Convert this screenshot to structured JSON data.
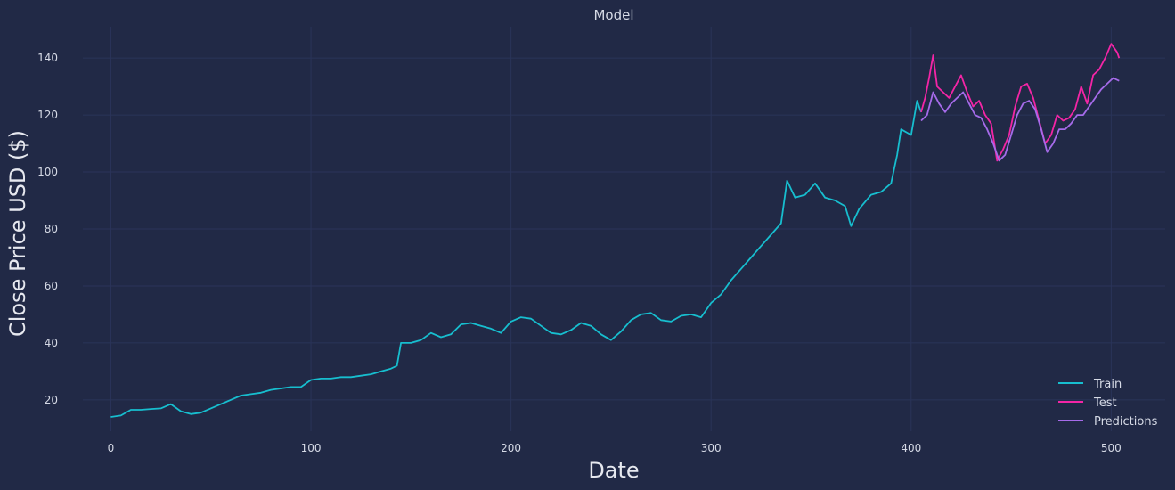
{
  "chart_data": {
    "type": "line",
    "title": "Model",
    "xlabel": "Date",
    "ylabel": "Close Price USD ($)",
    "xlim": [
      -14,
      527
    ],
    "ylim": [
      9,
      151
    ],
    "xticks": [
      0,
      100,
      200,
      300,
      400,
      500
    ],
    "yticks": [
      20,
      40,
      60,
      80,
      100,
      120,
      140
    ],
    "grid": true,
    "legend_position": "bottom-right",
    "colors": {
      "background": "#212946",
      "grid": "#2A3459",
      "text": "#d6dae6",
      "train": "#17BECF",
      "test": "#F425A6",
      "predictions": "#A66BEA"
    },
    "series": [
      {
        "name": "Train",
        "color": "#17BECF",
        "points": [
          [
            0,
            14
          ],
          [
            5,
            14.5
          ],
          [
            10,
            16.5
          ],
          [
            15,
            16.5
          ],
          [
            20,
            16.8
          ],
          [
            25,
            17
          ],
          [
            30,
            18.5
          ],
          [
            35,
            16
          ],
          [
            40,
            15
          ],
          [
            45,
            15.5
          ],
          [
            50,
            17
          ],
          [
            55,
            18.5
          ],
          [
            60,
            20
          ],
          [
            65,
            21.5
          ],
          [
            70,
            22
          ],
          [
            75,
            22.5
          ],
          [
            80,
            23.5
          ],
          [
            85,
            24
          ],
          [
            90,
            24.5
          ],
          [
            95,
            24.5
          ],
          [
            100,
            27
          ],
          [
            105,
            27.5
          ],
          [
            110,
            27.5
          ],
          [
            115,
            28
          ],
          [
            120,
            28
          ],
          [
            125,
            28.5
          ],
          [
            130,
            29
          ],
          [
            135,
            30
          ],
          [
            140,
            31
          ],
          [
            143,
            32
          ],
          [
            145,
            40
          ],
          [
            150,
            40
          ],
          [
            155,
            41
          ],
          [
            160,
            43.5
          ],
          [
            165,
            42
          ],
          [
            170,
            43
          ],
          [
            175,
            46.5
          ],
          [
            180,
            47
          ],
          [
            185,
            46
          ],
          [
            190,
            45
          ],
          [
            195,
            43.5
          ],
          [
            200,
            47.5
          ],
          [
            205,
            49
          ],
          [
            210,
            48.5
          ],
          [
            215,
            46
          ],
          [
            220,
            43.5
          ],
          [
            225,
            43
          ],
          [
            230,
            44.5
          ],
          [
            235,
            47
          ],
          [
            240,
            46
          ],
          [
            245,
            43
          ],
          [
            250,
            41
          ],
          [
            255,
            44
          ],
          [
            260,
            48
          ],
          [
            265,
            50
          ],
          [
            270,
            50.5
          ],
          [
            275,
            48
          ],
          [
            280,
            47.5
          ],
          [
            285,
            49.5
          ],
          [
            290,
            50
          ],
          [
            295,
            49
          ],
          [
            300,
            54
          ],
          [
            305,
            57
          ],
          [
            310,
            62
          ],
          [
            315,
            66
          ],
          [
            320,
            70
          ],
          [
            325,
            74
          ],
          [
            330,
            78
          ],
          [
            335,
            82
          ],
          [
            338,
            97
          ],
          [
            342,
            91
          ],
          [
            347,
            92
          ],
          [
            352,
            96
          ],
          [
            357,
            91
          ],
          [
            362,
            90
          ],
          [
            367,
            88
          ],
          [
            370,
            81
          ],
          [
            374,
            87
          ],
          [
            380,
            92
          ],
          [
            385,
            93
          ],
          [
            390,
            96
          ],
          [
            393,
            106
          ],
          [
            395,
            115
          ],
          [
            400,
            113
          ],
          [
            403,
            125
          ],
          [
            405,
            121
          ]
        ]
      },
      {
        "name": "Test",
        "color": "#F425A6",
        "points": [
          [
            405,
            121
          ],
          [
            407,
            126
          ],
          [
            409,
            133
          ],
          [
            411,
            141
          ],
          [
            413,
            130
          ],
          [
            416,
            128
          ],
          [
            419,
            126
          ],
          [
            422,
            130
          ],
          [
            425,
            134
          ],
          [
            428,
            128
          ],
          [
            431,
            123
          ],
          [
            434,
            125
          ],
          [
            437,
            120
          ],
          [
            440,
            117
          ],
          [
            443,
            104
          ],
          [
            446,
            108
          ],
          [
            449,
            113
          ],
          [
            452,
            123
          ],
          [
            455,
            130
          ],
          [
            458,
            131
          ],
          [
            461,
            126
          ],
          [
            464,
            118
          ],
          [
            467,
            110
          ],
          [
            470,
            113
          ],
          [
            473,
            120
          ],
          [
            476,
            118
          ],
          [
            479,
            119
          ],
          [
            482,
            122
          ],
          [
            485,
            130
          ],
          [
            488,
            124
          ],
          [
            491,
            134
          ],
          [
            494,
            136
          ],
          [
            497,
            140
          ],
          [
            500,
            145
          ],
          [
            503,
            142
          ],
          [
            504,
            140
          ]
        ]
      },
      {
        "name": "Predictions",
        "color": "#A66BEA",
        "points": [
          [
            405,
            118
          ],
          [
            408,
            120
          ],
          [
            411,
            128
          ],
          [
            414,
            124
          ],
          [
            417,
            121
          ],
          [
            420,
            124
          ],
          [
            423,
            126
          ],
          [
            426,
            128
          ],
          [
            429,
            124
          ],
          [
            432,
            120
          ],
          [
            435,
            119
          ],
          [
            438,
            115
          ],
          [
            441,
            110
          ],
          [
            444,
            104
          ],
          [
            447,
            106
          ],
          [
            450,
            113
          ],
          [
            453,
            120
          ],
          [
            456,
            124
          ],
          [
            459,
            125
          ],
          [
            462,
            122
          ],
          [
            465,
            115
          ],
          [
            468,
            107
          ],
          [
            471,
            110
          ],
          [
            474,
            115
          ],
          [
            477,
            115
          ],
          [
            480,
            117
          ],
          [
            483,
            120
          ],
          [
            486,
            120
          ],
          [
            489,
            123
          ],
          [
            492,
            126
          ],
          [
            495,
            129
          ],
          [
            498,
            131
          ],
          [
            501,
            133
          ],
          [
            504,
            132
          ]
        ]
      }
    ]
  }
}
